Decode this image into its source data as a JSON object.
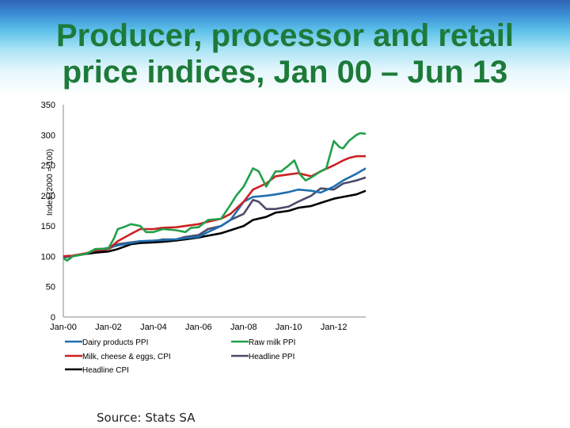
{
  "title_lines": [
    "Producer, processor and retail",
    "price indices, Jan 00 – Jun 13"
  ],
  "source": "Source: Stats SA",
  "chart_data": {
    "type": "line",
    "title": "Producer, processor and retail price indices, Jan 00 – Jun 13",
    "xlabel": "",
    "ylabel": "Index (2000 = 100)",
    "ylim": [
      0,
      350
    ],
    "yticks": [
      0,
      50,
      100,
      150,
      200,
      250,
      300,
      350
    ],
    "x_range": [
      "2000-01",
      "2013-06"
    ],
    "xticks": [
      "Jan-00",
      "Jan-02",
      "Jan-04",
      "Jan-06",
      "Jan-08",
      "Jan-10",
      "Jan-12"
    ],
    "grid": false,
    "legend_position": "bottom",
    "series": [
      {
        "name": "Dairy products PPI",
        "color": "#1f6fb0",
        "points": [
          [
            "2000-01",
            98
          ],
          [
            "2000-06",
            100
          ],
          [
            "2001-01",
            104
          ],
          [
            "2001-06",
            110
          ],
          [
            "2002-01",
            114
          ],
          [
            "2002-06",
            118
          ],
          [
            "2003-01",
            122
          ],
          [
            "2003-06",
            125
          ],
          [
            "2004-01",
            126
          ],
          [
            "2004-06",
            127
          ],
          [
            "2005-01",
            128
          ],
          [
            "2005-06",
            130
          ],
          [
            "2006-01",
            132
          ],
          [
            "2006-06",
            140
          ],
          [
            "2007-01",
            150
          ],
          [
            "2007-06",
            160
          ],
          [
            "2008-01",
            190
          ],
          [
            "2008-06",
            198
          ],
          [
            "2009-01",
            200
          ],
          [
            "2009-06",
            202
          ],
          [
            "2010-01",
            206
          ],
          [
            "2010-06",
            210
          ],
          [
            "2011-01",
            208
          ],
          [
            "2011-06",
            205
          ],
          [
            "2012-01",
            215
          ],
          [
            "2012-06",
            225
          ],
          [
            "2013-01",
            236
          ],
          [
            "2013-06",
            245
          ]
        ]
      },
      {
        "name": "Raw milk PPI",
        "color": "#22a04a",
        "points": [
          [
            "2000-01",
            97
          ],
          [
            "2000-03",
            93
          ],
          [
            "2000-06",
            100
          ],
          [
            "2001-01",
            104
          ],
          [
            "2001-06",
            112
          ],
          [
            "2002-01",
            113
          ],
          [
            "2002-04",
            130
          ],
          [
            "2002-06",
            145
          ],
          [
            "2002-09",
            148
          ],
          [
            "2003-01",
            153
          ],
          [
            "2003-06",
            150
          ],
          [
            "2003-09",
            140
          ],
          [
            "2004-01",
            140
          ],
          [
            "2004-06",
            145
          ],
          [
            "2005-01",
            143
          ],
          [
            "2005-06",
            140
          ],
          [
            "2005-09",
            147
          ],
          [
            "2006-01",
            148
          ],
          [
            "2006-06",
            160
          ],
          [
            "2007-01",
            162
          ],
          [
            "2007-06",
            185
          ],
          [
            "2007-09",
            200
          ],
          [
            "2008-01",
            215
          ],
          [
            "2008-06",
            245
          ],
          [
            "2008-09",
            240
          ],
          [
            "2009-01",
            215
          ],
          [
            "2009-06",
            240
          ],
          [
            "2009-09",
            240
          ],
          [
            "2010-01",
            250
          ],
          [
            "2010-04",
            258
          ],
          [
            "2010-07",
            235
          ],
          [
            "2010-10",
            225
          ],
          [
            "2011-01",
            230
          ],
          [
            "2011-06",
            240
          ],
          [
            "2011-09",
            245
          ],
          [
            "2012-01",
            290
          ],
          [
            "2012-04",
            280
          ],
          [
            "2012-06",
            278
          ],
          [
            "2012-09",
            290
          ],
          [
            "2013-01",
            300
          ],
          [
            "2013-03",
            303
          ],
          [
            "2013-06",
            302
          ]
        ]
      },
      {
        "name": "Milk, cheese & eggs, CPI",
        "color": "#cc2020",
        "points": [
          [
            "2000-01",
            100
          ],
          [
            "2000-06",
            101
          ],
          [
            "2001-01",
            105
          ],
          [
            "2001-06",
            110
          ],
          [
            "2002-01",
            112
          ],
          [
            "2002-06",
            125
          ],
          [
            "2003-01",
            137
          ],
          [
            "2003-06",
            145
          ],
          [
            "2004-01",
            145
          ],
          [
            "2004-06",
            147
          ],
          [
            "2005-01",
            148
          ],
          [
            "2005-06",
            150
          ],
          [
            "2006-01",
            153
          ],
          [
            "2006-06",
            157
          ],
          [
            "2007-01",
            162
          ],
          [
            "2007-06",
            170
          ],
          [
            "2008-01",
            190
          ],
          [
            "2008-06",
            210
          ],
          [
            "2009-01",
            220
          ],
          [
            "2009-06",
            232
          ],
          [
            "2010-01",
            235
          ],
          [
            "2010-06",
            237
          ],
          [
            "2011-01",
            232
          ],
          [
            "2011-06",
            240
          ],
          [
            "2012-01",
            250
          ],
          [
            "2012-06",
            258
          ],
          [
            "2012-09",
            262
          ],
          [
            "2013-01",
            265
          ],
          [
            "2013-06",
            265
          ]
        ]
      },
      {
        "name": "Headline PPI",
        "color": "#4b4b6b",
        "points": [
          [
            "2000-01",
            100
          ],
          [
            "2000-06",
            101
          ],
          [
            "2001-01",
            105
          ],
          [
            "2001-06",
            108
          ],
          [
            "2002-01",
            112
          ],
          [
            "2002-06",
            120
          ],
          [
            "2003-01",
            123
          ],
          [
            "2003-06",
            125
          ],
          [
            "2004-01",
            125
          ],
          [
            "2004-06",
            128
          ],
          [
            "2005-01",
            128
          ],
          [
            "2005-06",
            132
          ],
          [
            "2006-01",
            135
          ],
          [
            "2006-06",
            145
          ],
          [
            "2007-01",
            150
          ],
          [
            "2007-06",
            160
          ],
          [
            "2008-01",
            170
          ],
          [
            "2008-06",
            193
          ],
          [
            "2008-09",
            190
          ],
          [
            "2009-01",
            178
          ],
          [
            "2009-06",
            178
          ],
          [
            "2010-01",
            182
          ],
          [
            "2010-06",
            190
          ],
          [
            "2011-01",
            200
          ],
          [
            "2011-06",
            212
          ],
          [
            "2012-01",
            210
          ],
          [
            "2012-06",
            220
          ],
          [
            "2012-09",
            222
          ],
          [
            "2013-01",
            225
          ],
          [
            "2013-06",
            230
          ]
        ]
      },
      {
        "name": "Headline CPI",
        "color": "#000000",
        "points": [
          [
            "2000-01",
            100
          ],
          [
            "2000-06",
            101
          ],
          [
            "2001-01",
            104
          ],
          [
            "2001-06",
            106
          ],
          [
            "2002-01",
            108
          ],
          [
            "2002-06",
            112
          ],
          [
            "2003-01",
            120
          ],
          [
            "2003-06",
            122
          ],
          [
            "2004-01",
            123
          ],
          [
            "2004-06",
            124
          ],
          [
            "2005-01",
            126
          ],
          [
            "2005-06",
            128
          ],
          [
            "2006-01",
            131
          ],
          [
            "2006-06",
            134
          ],
          [
            "2007-01",
            138
          ],
          [
            "2007-06",
            143
          ],
          [
            "2008-01",
            150
          ],
          [
            "2008-06",
            160
          ],
          [
            "2009-01",
            165
          ],
          [
            "2009-06",
            172
          ],
          [
            "2010-01",
            175
          ],
          [
            "2010-06",
            180
          ],
          [
            "2011-01",
            183
          ],
          [
            "2011-06",
            188
          ],
          [
            "2012-01",
            195
          ],
          [
            "2012-06",
            198
          ],
          [
            "2013-01",
            202
          ],
          [
            "2013-06",
            208
          ]
        ]
      }
    ]
  }
}
